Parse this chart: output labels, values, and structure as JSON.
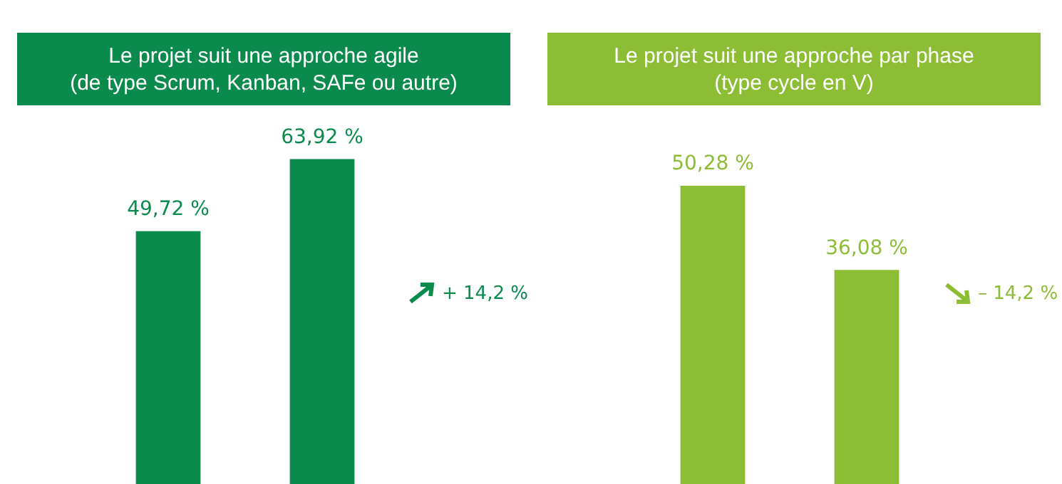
{
  "chart_data": [
    {
      "type": "bar",
      "title": "Le projet suit une approche agile\n(de type Scrum, Kanban, SAFe ou autre)",
      "categories": [
        null,
        null
      ],
      "values": [
        49.72,
        63.92
      ],
      "color": "#0b8a4e",
      "value_labels": [
        "49,72 %",
        "63,92 %"
      ],
      "annotations": [
        "+ 14,2 %"
      ]
    },
    {
      "type": "bar",
      "title": "Le projet suit une approche par phase\n(type cycle en V)",
      "categories": [
        null,
        null
      ],
      "values": [
        50.28,
        36.08
      ],
      "color": "#8dbd35",
      "value_labels": [
        "50,28 %",
        "36,08 %"
      ],
      "annotations": [
        "– 14,2 %"
      ]
    }
  ]
}
